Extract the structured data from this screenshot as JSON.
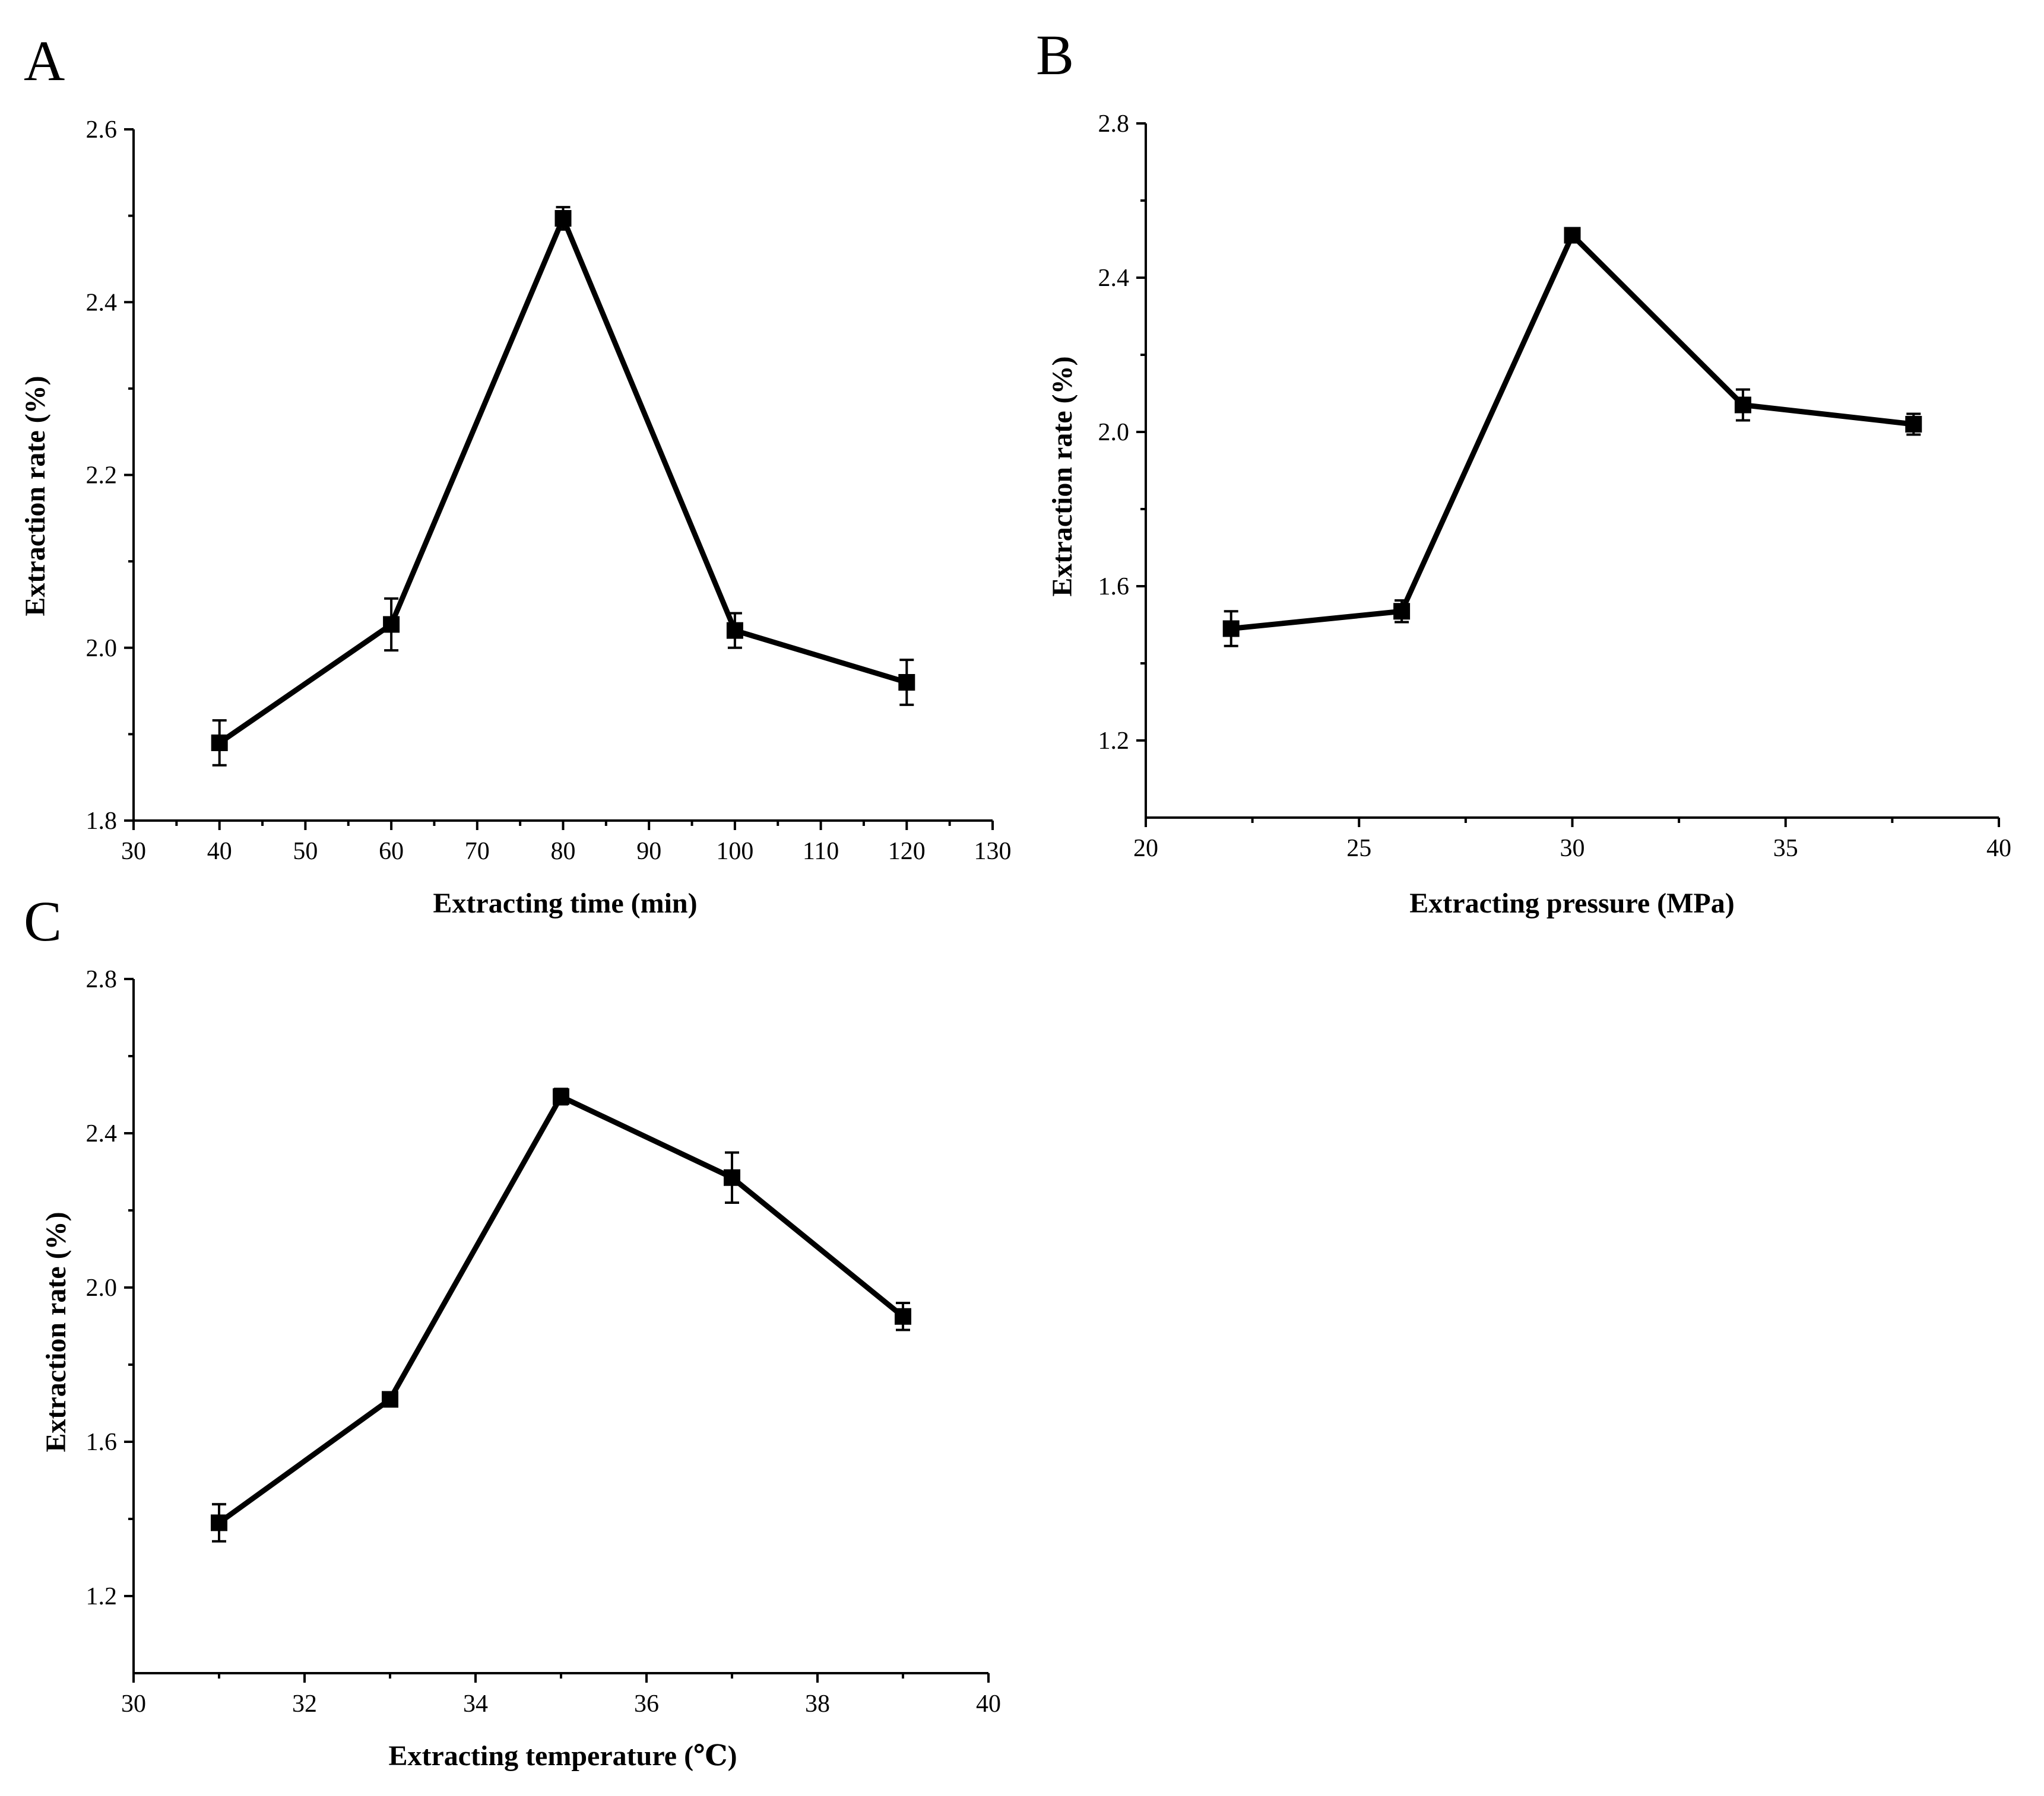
{
  "chart_data": [
    {
      "panel": "A",
      "type": "line",
      "xlabel": "Extracting time (min)",
      "ylabel": "Extraction rate (%)",
      "xlim": [
        30,
        130
      ],
      "ylim": [
        1.8,
        2.6
      ],
      "xticks": [
        30,
        40,
        50,
        60,
        70,
        80,
        90,
        100,
        110,
        120,
        130
      ],
      "yticks": [
        1.8,
        2.0,
        2.2,
        2.4,
        2.6
      ],
      "yfmt": 1,
      "x": [
        40,
        60,
        80,
        100,
        120
      ],
      "y": [
        1.89,
        2.027,
        2.497,
        2.02,
        1.96
      ],
      "err": [
        0.026,
        0.03,
        0.013,
        0.02,
        0.026
      ]
    },
    {
      "panel": "B",
      "type": "line",
      "xlabel": "Extracting pressure (MPa)",
      "ylabel": "Extraction rate (%)",
      "xlim": [
        20,
        40
      ],
      "ylim": [
        1.0,
        2.8
      ],
      "xticks": [
        20,
        25,
        30,
        35,
        40
      ],
      "yticks": [
        1.2,
        1.6,
        2.0,
        2.4,
        2.8
      ],
      "yfmt": 1,
      "x": [
        22,
        26,
        30,
        34,
        38
      ],
      "y": [
        1.49,
        1.535,
        2.51,
        2.07,
        2.02
      ],
      "err": [
        0.045,
        0.028,
        0.015,
        0.04,
        0.027
      ]
    },
    {
      "panel": "C",
      "type": "line",
      "xlabel": "Extracting temperature (℃)",
      "ylabel": "Extraction rate (%)",
      "xlim": [
        30,
        40
      ],
      "ylim": [
        1.0,
        2.8
      ],
      "xticks": [
        30,
        32,
        34,
        36,
        38,
        40
      ],
      "yticks": [
        1.2,
        1.6,
        2.0,
        2.4,
        2.8
      ],
      "yfmt": 1,
      "x": [
        31,
        33,
        35,
        37,
        39
      ],
      "y": [
        1.39,
        1.71,
        2.495,
        2.285,
        1.925
      ],
      "err": [
        0.048,
        0.018,
        0.02,
        0.065,
        0.035
      ]
    }
  ]
}
